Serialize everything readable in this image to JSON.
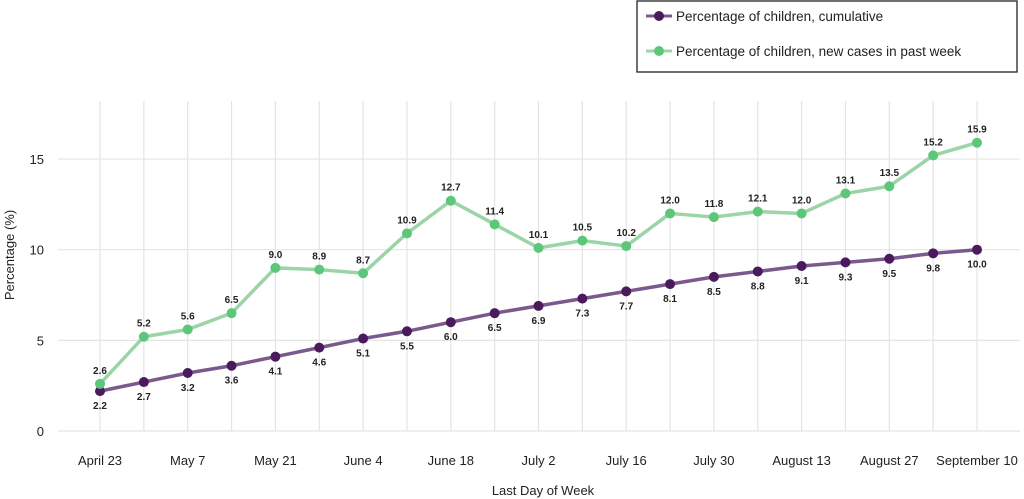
{
  "chart_data": {
    "type": "line",
    "title": "",
    "xlabel": "Last Day of Week",
    "ylabel": "Percentage (%)",
    "ylim": [
      0,
      17.5
    ],
    "yticks": [
      0,
      5,
      10,
      15
    ],
    "x_tick_labels": [
      "April 23",
      "May 7",
      "May 21",
      "June 4",
      "June 18",
      "July 2",
      "July 16",
      "July 30",
      "August 13",
      "August 27",
      "September 10"
    ],
    "grid": true,
    "legend_position": "top-right",
    "series": [
      {
        "name": "Percentage of children, cumulative",
        "color": "#4a1a5c",
        "line_color": "#7a5a8c",
        "label_position": "below",
        "values": [
          2.2,
          2.7,
          3.2,
          3.6,
          4.1,
          4.6,
          5.1,
          5.5,
          6.0,
          6.5,
          6.9,
          7.3,
          7.7,
          8.1,
          8.5,
          8.8,
          9.1,
          9.3,
          9.5,
          9.8,
          10.0
        ],
        "labels": [
          "2.2",
          "2.7",
          "3.2",
          "3.6",
          "4.1",
          "4.6",
          "5.1",
          "5.5",
          "6.0",
          "6.5",
          "6.9",
          "7.3",
          "7.7",
          "8.1",
          "8.5",
          "8.8",
          "9.1",
          "9.3",
          "9.5",
          "9.8",
          "10.0"
        ]
      },
      {
        "name": "Percentage of children, new cases in past week",
        "color": "#5cc77a",
        "line_color": "#9bd4a6",
        "label_position": "above",
        "values": [
          2.6,
          5.2,
          5.6,
          6.5,
          9.0,
          8.9,
          8.7,
          10.9,
          12.7,
          11.4,
          10.1,
          10.5,
          10.2,
          12.0,
          11.8,
          12.1,
          12.0,
          13.1,
          13.5,
          15.2,
          15.9
        ],
        "labels": [
          "2.6",
          "5.2",
          "5.6",
          "6.5",
          "9.0",
          "8.9",
          "8.7",
          "10.9",
          "12.7",
          "11.4",
          "10.1",
          "10.5",
          "10.2",
          "12.0",
          "11.8",
          "12.1",
          "12.0",
          "13.1",
          "13.5",
          "15.2",
          "15.9"
        ]
      }
    ]
  }
}
